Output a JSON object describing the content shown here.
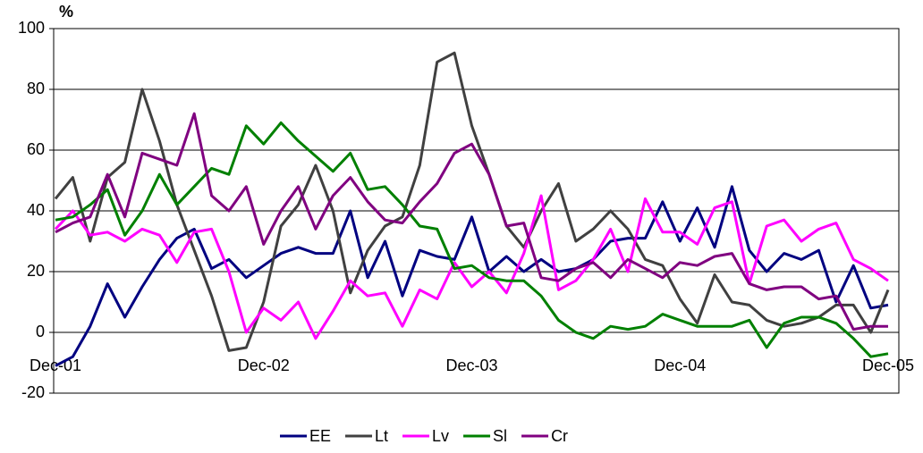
{
  "chart_data": {
    "type": "line",
    "y_axis_label": "%",
    "categories": [
      "Dec-01",
      null,
      null,
      null,
      null,
      null,
      null,
      null,
      null,
      null,
      null,
      null,
      "Dec-02",
      null,
      null,
      null,
      null,
      null,
      null,
      null,
      null,
      null,
      null,
      null,
      "Dec-03",
      null,
      null,
      null,
      null,
      null,
      null,
      null,
      null,
      null,
      null,
      null,
      "Dec-04",
      null,
      null,
      null,
      null,
      null,
      null,
      null,
      null,
      null,
      null,
      null,
      "Dec-05"
    ],
    "series": [
      {
        "name": "EE",
        "color": "#000080",
        "values": [
          -11,
          -8,
          2,
          16,
          5,
          15,
          24,
          31,
          34,
          21,
          24,
          18,
          22,
          26,
          28,
          26,
          26,
          40,
          18,
          30,
          12,
          27,
          25,
          24,
          38,
          20,
          25,
          20,
          24,
          20,
          21,
          24,
          30,
          31,
          31,
          43,
          30,
          41,
          28,
          48,
          27,
          20,
          26,
          24,
          27,
          10,
          22,
          8,
          9
        ]
      },
      {
        "name": "Lt",
        "color": "#404040",
        "values": [
          44,
          51,
          30,
          51,
          56,
          80,
          63,
          42,
          27,
          12,
          -6,
          -5,
          10,
          35,
          42,
          55,
          40,
          13,
          27,
          35,
          38,
          55,
          89,
          92,
          68,
          52,
          35,
          28,
          40,
          49,
          30,
          34,
          40,
          34,
          24,
          22,
          11,
          3,
          19,
          10,
          9,
          4,
          2,
          3,
          5,
          9,
          9,
          0,
          14
        ]
      },
      {
        "name": "Lv",
        "color": "#ff00ff",
        "values": [
          34,
          40,
          32,
          33,
          30,
          34,
          32,
          23,
          33,
          34,
          20,
          0,
          8,
          4,
          10,
          -2,
          7,
          17,
          12,
          13,
          2,
          14,
          11,
          23,
          15,
          20,
          13,
          26,
          45,
          14,
          17,
          24,
          34,
          20,
          44,
          33,
          33,
          29,
          41,
          43,
          16,
          35,
          37,
          30,
          34,
          36,
          24,
          21,
          17
        ]
      },
      {
        "name": "Sl",
        "color": "#008000",
        "values": [
          37,
          38,
          42,
          47,
          32,
          40,
          52,
          42,
          48,
          54,
          52,
          68,
          62,
          69,
          63,
          58,
          53,
          59,
          47,
          48,
          42,
          35,
          34,
          21,
          22,
          18,
          17,
          17,
          12,
          4,
          0,
          -2,
          2,
          1,
          2,
          6,
          4,
          2,
          2,
          2,
          4,
          -5,
          3,
          5,
          5,
          3,
          -2,
          -8,
          -7
        ]
      },
      {
        "name": "Cr",
        "color": "#800080",
        "values": [
          33,
          36,
          38,
          52,
          38,
          59,
          57,
          55,
          72,
          45,
          40,
          48,
          29,
          40,
          48,
          34,
          45,
          51,
          43,
          37,
          36,
          43,
          49,
          59,
          62,
          52,
          35,
          36,
          18,
          17,
          21,
          23,
          18,
          24,
          21,
          18,
          23,
          22,
          25,
          26,
          16,
          14,
          15,
          15,
          11,
          12,
          1,
          2,
          2
        ]
      }
    ],
    "ylim": [
      -20,
      100
    ],
    "yticks": [
      -20,
      0,
      20,
      40,
      60,
      80,
      100
    ],
    "grid": true
  }
}
